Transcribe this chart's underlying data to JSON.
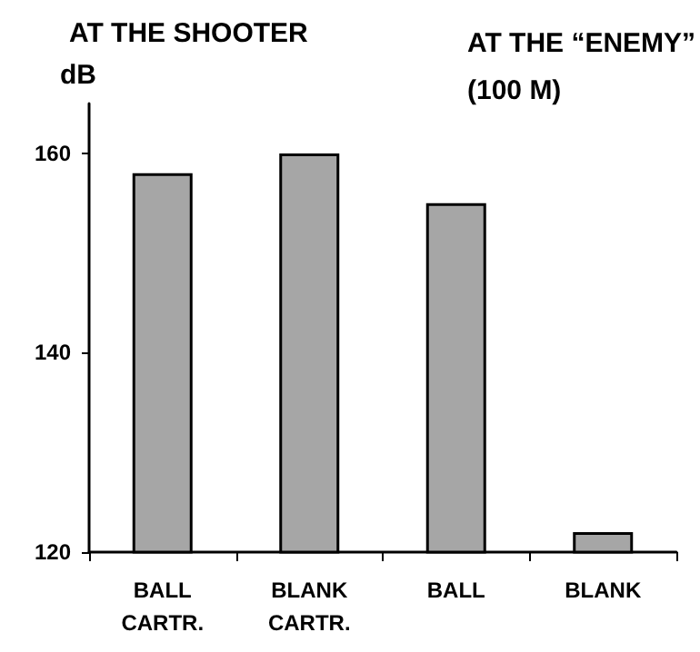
{
  "chart_data": {
    "type": "bar",
    "title": "AT THE SHOOTER",
    "subtitle": "AT THE “ENEMY”\n(100 M)",
    "ylabel": "dB",
    "categories": [
      "BALL\nCARTR.",
      "BLANK\nCARTR.",
      "BALL",
      "BLANK"
    ],
    "values": [
      158,
      160,
      155,
      122
    ],
    "color": "#a6a6a6",
    "ylim": [
      120,
      165
    ],
    "yticks": [
      120,
      140,
      160
    ],
    "grid": false
  }
}
